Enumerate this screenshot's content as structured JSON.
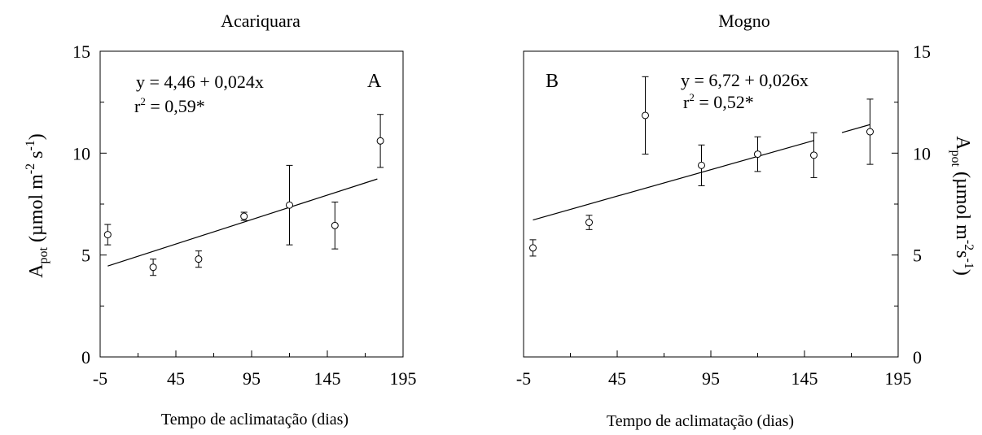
{
  "chart_data": [
    {
      "type": "scatter",
      "title": "Acariquara",
      "panel_label": "A",
      "xlabel": "Tempo de aclimatação (dias)",
      "ylabel_parts": {
        "main": "A",
        "sub": "pot",
        "unit_open": " (µmol m",
        "sup1": "-2",
        "unit_mid": " s",
        "sup2": "-1",
        "unit_close": ")"
      },
      "xlim": [
        -5,
        195
      ],
      "ylim": [
        0,
        15
      ],
      "xticks": [
        "-5",
        "45",
        "95",
        "145",
        "195"
      ],
      "yticks": [
        "0",
        "5",
        "10",
        "15"
      ],
      "y_axis_side": "left",
      "equation": "y = 4,46 + 0,024x",
      "r2_text": {
        "base": "r",
        "sup": "2",
        "rest": " = 0,59*"
      },
      "points": [
        {
          "x": 0,
          "y": 6.0,
          "err": 0.5
        },
        {
          "x": 30,
          "y": 4.4,
          "err": 0.4
        },
        {
          "x": 60,
          "y": 4.8,
          "err": 0.4
        },
        {
          "x": 90,
          "y": 6.9,
          "err": 0.2
        },
        {
          "x": 120,
          "y": 7.45,
          "err": 1.95
        },
        {
          "x": 150,
          "y": 6.45,
          "err": 1.15
        },
        {
          "x": 180,
          "y": 10.6,
          "err": 1.3
        }
      ],
      "fit": {
        "intercept": 4.46,
        "slope": 0.024,
        "x_range": [
          0,
          178
        ]
      }
    },
    {
      "type": "scatter",
      "title": "Mogno",
      "panel_label": "B",
      "xlabel": "Tempo de aclimatação (dias)",
      "ylabel_parts": {
        "main": "A",
        "sub": "pot",
        "unit_open": " (µmol m",
        "sup1": "-2",
        "unit_mid": "s",
        "sup2": "-1",
        "unit_close": ")"
      },
      "xlim": [
        -5,
        195
      ],
      "ylim": [
        0,
        15
      ],
      "xticks": [
        "-5",
        "45",
        "95",
        "145",
        "195"
      ],
      "yticks": [
        "0",
        "5",
        "10",
        "15"
      ],
      "y_axis_side": "right",
      "equation": "y = 6,72 + 0,026x",
      "r2_text": {
        "base": "r",
        "sup": "2",
        "rest": " = 0,52*"
      },
      "points": [
        {
          "x": 0,
          "y": 5.35,
          "err": 0.4
        },
        {
          "x": 30,
          "y": 6.6,
          "err": 0.35
        },
        {
          "x": 60,
          "y": 11.85,
          "err": 1.9
        },
        {
          "x": 90,
          "y": 9.4,
          "err": 1.0
        },
        {
          "x": 120,
          "y": 9.95,
          "err": 0.85
        },
        {
          "x": 150,
          "y": 9.9,
          "err": 1.1
        },
        {
          "x": 180,
          "y": 11.05,
          "err": 1.6
        }
      ],
      "fit": {
        "intercept": 6.72,
        "slope": 0.026,
        "segments": [
          [
            0,
            150
          ],
          [
            165,
            180
          ]
        ]
      }
    }
  ]
}
